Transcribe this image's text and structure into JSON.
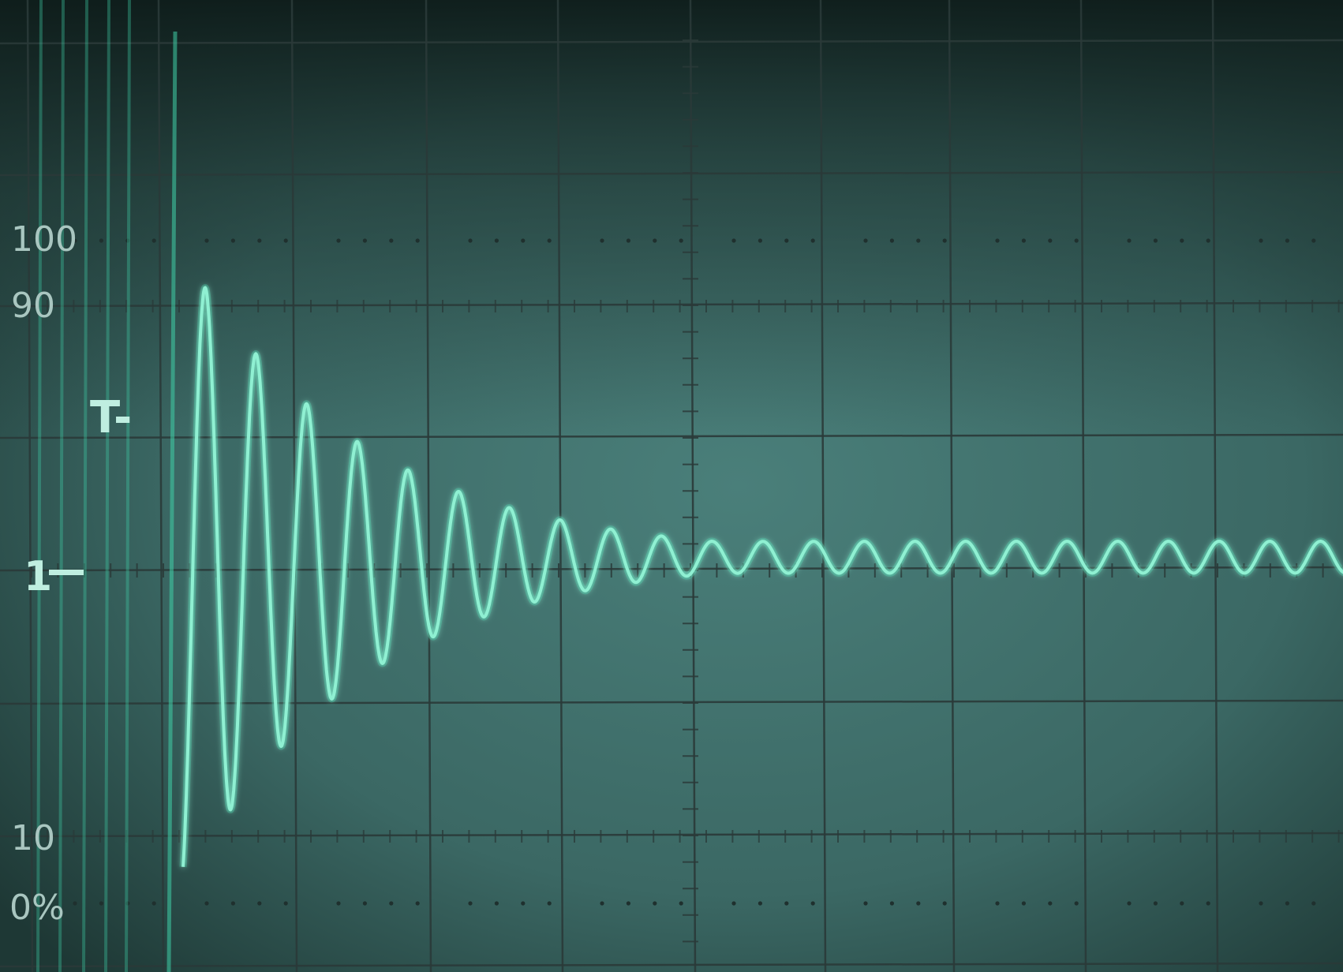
{
  "screen": {
    "trace_color": "#8ff0d2",
    "glow_color": "#3fd0a8",
    "grid_color": "#2a3a38",
    "screen_color": "#3e6f6b"
  },
  "markers": {
    "label_100": "100",
    "label_90": "90",
    "label_10": "10",
    "label_0": "0%",
    "trigger": "T-",
    "channel": "1"
  },
  "chart_data": {
    "type": "line",
    "title": "",
    "xlabel": "",
    "ylabel": "",
    "x_divisions": 10,
    "y_divisions": 8,
    "y_scale_marks": [
      0,
      10,
      90,
      100
    ],
    "y_unit": "%",
    "waveform": {
      "description": "damped oscillation settling to baseline",
      "baseline_div": 0,
      "start_div": 1.15,
      "end_div": 10.0,
      "initial_amplitude_div": 2.4,
      "decay_per_div": 0.55,
      "cycles_per_div": 2.6,
      "settled_amplitude_div": 0.12,
      "settled_offset_div": 0.1
    }
  }
}
